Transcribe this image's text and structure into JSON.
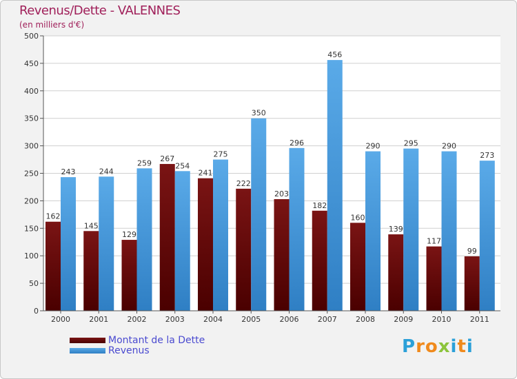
{
  "header": {
    "title": "Revenus/Dette - VALENNES",
    "subtitle": "(en milliers d'€)"
  },
  "legend": {
    "dette_label": "Montant de la Dette",
    "revenus_label": "Revenus"
  },
  "logo": {
    "text": "Proxiti",
    "letters": [
      "P",
      "r",
      "o",
      "x",
      "i",
      "t",
      "i"
    ],
    "colors": [
      "#2ba0d8",
      "#f08a1c",
      "#f08a1c",
      "#8cc43c",
      "#2ba0d8",
      "#f08a1c",
      "#2ba0d8"
    ]
  },
  "colors": {
    "dette": "#7a1414",
    "dette_dark": "#4a0000",
    "revenus": "#5aaae8",
    "revenus_dark": "#2f7fc4",
    "grid": "#cfcfcf",
    "plot_bg": "#ffffff"
  },
  "chart_data": {
    "type": "bar",
    "title": "Revenus/Dette - VALENNES",
    "ylabel": "(en milliers d'€)",
    "xlabel": "",
    "categories": [
      "2000",
      "2001",
      "2002",
      "2003",
      "2004",
      "2005",
      "2006",
      "2007",
      "2008",
      "2009",
      "2010",
      "2011"
    ],
    "series": [
      {
        "name": "Montant de la Dette",
        "values": [
          162,
          145,
          129,
          267,
          241,
          222,
          203,
          182,
          160,
          139,
          117,
          99
        ]
      },
      {
        "name": "Revenus",
        "values": [
          243,
          244,
          259,
          254,
          275,
          350,
          296,
          456,
          290,
          295,
          290,
          273
        ]
      }
    ],
    "ylim": [
      0,
      500
    ],
    "yticks": [
      0,
      50,
      100,
      150,
      200,
      250,
      300,
      350,
      400,
      450,
      500
    ],
    "grid": true,
    "legend_position": "bottom-left"
  }
}
